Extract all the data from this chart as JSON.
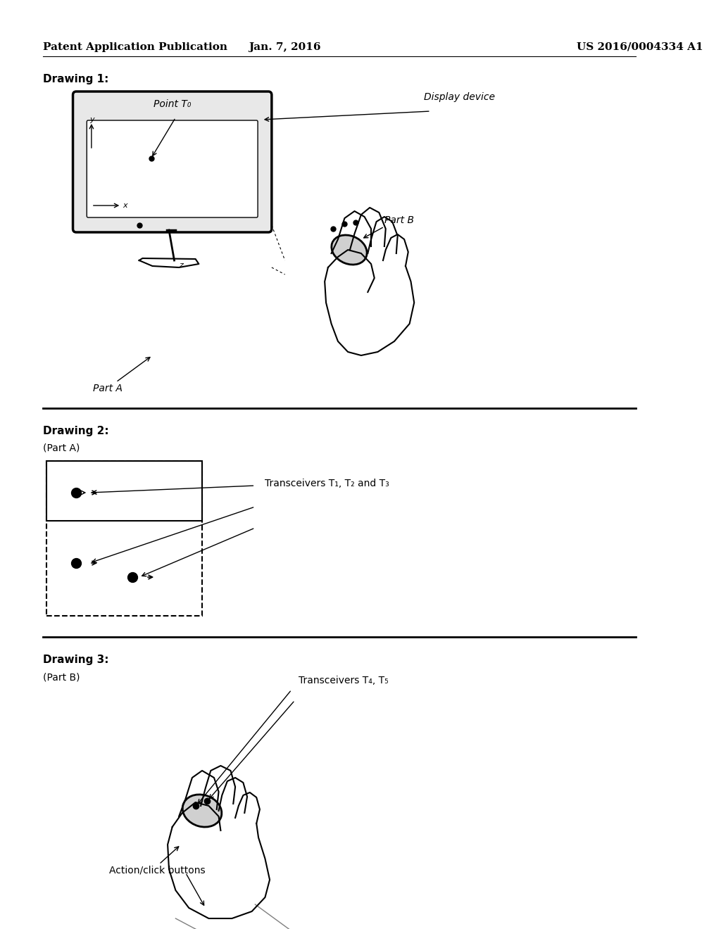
{
  "bg_color": "#ffffff",
  "header_left": "Patent Application Publication",
  "header_mid": "Jan. 7, 2016",
  "header_right": "US 2016/0004334 A1",
  "drawing1_label": "Drawing 1:",
  "drawing2_label": "Drawing 2:",
  "drawing3_label": "Drawing 3:",
  "part_a_label": "(Part A)",
  "part_b_label": "(Part B)",
  "part_a_arrow": "Part A",
  "part_b_arrow": "Part B",
  "point_t0": "Point T₀",
  "display_device": "Display device",
  "transceivers_123": "Transceivers T₁, T₂ and T₃",
  "transceivers_45": "Transceivers T₄, T₅",
  "action_click": "Action/click buttons",
  "line_color": "#000000",
  "text_color": "#000000"
}
